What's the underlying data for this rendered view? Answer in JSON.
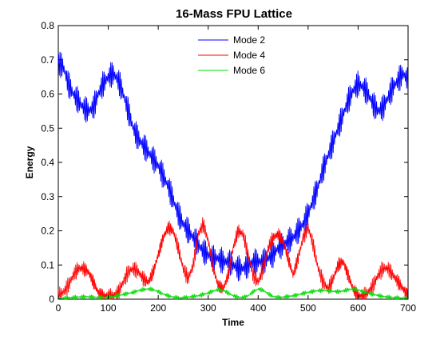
{
  "chart_data": {
    "type": "line",
    "title": "16-Mass FPU Lattice",
    "xlabel": "Time",
    "ylabel": "Energy",
    "xlim": [
      0,
      700
    ],
    "ylim": [
      0,
      0.8
    ],
    "xticks": [
      "0",
      "100",
      "200",
      "300",
      "400",
      "500",
      "600",
      "700"
    ],
    "yticks": [
      "0",
      "0.1",
      "0.2",
      "0.3",
      "0.4",
      "0.5",
      "0.6",
      "0.7",
      "0.8"
    ],
    "grid": false,
    "legend_position": "top-center",
    "x": [
      0,
      10,
      20,
      30,
      40,
      50,
      60,
      70,
      80,
      90,
      100,
      110,
      120,
      130,
      140,
      150,
      160,
      170,
      180,
      190,
      200,
      210,
      220,
      230,
      240,
      250,
      260,
      270,
      280,
      290,
      300,
      310,
      320,
      330,
      340,
      350,
      360,
      370,
      380,
      390,
      400,
      410,
      420,
      430,
      440,
      450,
      460,
      470,
      480,
      490,
      500,
      510,
      520,
      530,
      540,
      550,
      560,
      570,
      580,
      590,
      600,
      610,
      620,
      630,
      640,
      650,
      660,
      670,
      680,
      690,
      700
    ],
    "series": [
      {
        "name": "Mode 2",
        "color": "#0000ff",
        "oscillation": 0.04,
        "values": [
          0.69,
          0.68,
          0.63,
          0.6,
          0.58,
          0.56,
          0.55,
          0.56,
          0.6,
          0.63,
          0.65,
          0.66,
          0.64,
          0.6,
          0.55,
          0.5,
          0.47,
          0.45,
          0.43,
          0.41,
          0.39,
          0.36,
          0.33,
          0.29,
          0.25,
          0.22,
          0.2,
          0.18,
          0.16,
          0.14,
          0.13,
          0.12,
          0.12,
          0.11,
          0.11,
          0.1,
          0.09,
          0.09,
          0.1,
          0.11,
          0.11,
          0.11,
          0.12,
          0.13,
          0.15,
          0.16,
          0.17,
          0.18,
          0.2,
          0.22,
          0.25,
          0.29,
          0.33,
          0.38,
          0.42,
          0.46,
          0.5,
          0.54,
          0.58,
          0.61,
          0.63,
          0.62,
          0.6,
          0.57,
          0.55,
          0.56,
          0.59,
          0.62,
          0.64,
          0.66,
          0.64
        ]
      },
      {
        "name": "Mode 4",
        "color": "#ff0000",
        "oscillation": 0.02,
        "values": [
          0.01,
          0.02,
          0.04,
          0.07,
          0.09,
          0.09,
          0.08,
          0.05,
          0.02,
          0.01,
          0.01,
          0.01,
          0.02,
          0.05,
          0.08,
          0.09,
          0.08,
          0.06,
          0.05,
          0.08,
          0.13,
          0.18,
          0.21,
          0.2,
          0.15,
          0.09,
          0.06,
          0.1,
          0.19,
          0.22,
          0.17,
          0.09,
          0.04,
          0.03,
          0.07,
          0.15,
          0.2,
          0.19,
          0.13,
          0.07,
          0.05,
          0.09,
          0.15,
          0.18,
          0.19,
          0.17,
          0.12,
          0.07,
          0.12,
          0.18,
          0.21,
          0.16,
          0.09,
          0.05,
          0.03,
          0.06,
          0.1,
          0.11,
          0.07,
          0.03,
          0.01,
          0.01,
          0.02,
          0.04,
          0.07,
          0.09,
          0.09,
          0.07,
          0.05,
          0.03,
          0.01
        ]
      },
      {
        "name": "Mode 6",
        "color": "#00dd00",
        "oscillation": 0.006,
        "values": [
          0.002,
          0.003,
          0.004,
          0.005,
          0.006,
          0.007,
          0.007,
          0.006,
          0.005,
          0.005,
          0.006,
          0.008,
          0.011,
          0.014,
          0.017,
          0.02,
          0.025,
          0.028,
          0.03,
          0.028,
          0.022,
          0.015,
          0.01,
          0.006,
          0.004,
          0.004,
          0.006,
          0.008,
          0.01,
          0.014,
          0.018,
          0.024,
          0.028,
          0.026,
          0.018,
          0.01,
          0.006,
          0.005,
          0.01,
          0.022,
          0.03,
          0.026,
          0.016,
          0.008,
          0.005,
          0.006,
          0.008,
          0.01,
          0.013,
          0.017,
          0.02,
          0.023,
          0.025,
          0.026,
          0.025,
          0.023,
          0.022,
          0.024,
          0.028,
          0.03,
          0.027,
          0.022,
          0.018,
          0.014,
          0.011,
          0.008,
          0.006,
          0.005,
          0.004,
          0.003,
          0.002
        ]
      }
    ]
  }
}
